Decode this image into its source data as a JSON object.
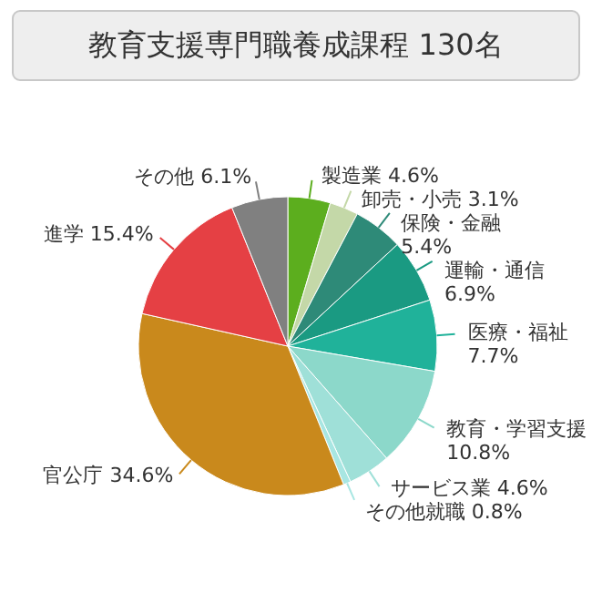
{
  "chart_data": {
    "type": "pie",
    "title": "教育支援専門職養成課程 130名",
    "categories": [
      "製造業",
      "卸売・小売",
      "保険・金融",
      "運輸・通信",
      "医療・福祉",
      "教育・学習支援",
      "サービス業",
      "その他就職",
      "官公庁",
      "進学",
      "その他"
    ],
    "values": [
      4.6,
      3.1,
      5.4,
      6.9,
      7.7,
      10.8,
      4.6,
      0.8,
      34.6,
      15.4,
      6.1
    ],
    "value_labels": [
      "4.6%",
      "3.1%",
      "5.4%",
      "6.9%",
      "7.7%",
      "10.8%",
      "4.6%",
      "0.8%",
      "34.6%",
      "15.4%",
      "6.1%"
    ],
    "colors": [
      "#5cae1e",
      "#c4d8a8",
      "#2e8a78",
      "#1a9a82",
      "#20b29a",
      "#8cd8ca",
      "#9fe0d8",
      "#a8e6e2",
      "#c9891c",
      "#e54044",
      "#808080"
    ]
  }
}
